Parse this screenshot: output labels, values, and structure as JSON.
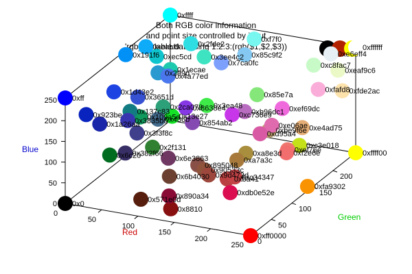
{
  "chart_data": {
    "type": "scatter",
    "title": [
      "Both RGB color information",
      "and point size controlled by input",
      "'rgb_variable.dat' using 1:2:3:(rgb($1,$2,$3))"
    ],
    "xlabel": "Red",
    "ylabel": "Green",
    "zlabel": "Blue",
    "xlim": [
      0,
      255
    ],
    "ylim": [
      0,
      255
    ],
    "zlim": [
      0,
      255
    ],
    "x_ticks": [
      0,
      50,
      100,
      150,
      200,
      250
    ],
    "y_ticks": [
      0,
      50,
      100,
      150,
      200
    ],
    "z_ticks": [
      0,
      50,
      100,
      150,
      200,
      250
    ],
    "label_colors": {
      "xlabel": "#cc0000",
      "ylabel": "#00cc00",
      "zlabel": "#0000cc"
    },
    "legend_swatches": [
      "#000000",
      "#b22200",
      "#ffff00"
    ],
    "points": [
      {
        "label": "0x0",
        "rgb": [
          0,
          0,
          0
        ]
      },
      {
        "label": "0xff",
        "rgb": [
          0,
          0,
          255
        ]
      },
      {
        "label": "0xff0000",
        "rgb": [
          255,
          0,
          0
        ]
      },
      {
        "label": "0xffff00",
        "rgb": [
          255,
          255,
          0
        ]
      },
      {
        "label": "0xffff",
        "rgb": [
          0,
          255,
          255
        ]
      },
      {
        "label": "0xffffff",
        "rgb": [
          255,
          255,
          255
        ]
      },
      {
        "label": "0xe6eff4",
        "rgb": [
          230,
          239,
          244
        ]
      },
      {
        "label": "0xeabf9",
        "rgb": [
          14,
          171,
          249
        ]
      },
      {
        "label": "0x191f6",
        "rgb": [
          1,
          145,
          246
        ]
      },
      {
        "label": "0x85c9f2",
        "rgb": [
          133,
          201,
          242
        ]
      },
      {
        "label": "0x1ecae",
        "rgb": [
          30,
          202,
          174
        ]
      },
      {
        "label": "0x3ee4c2",
        "rgb": [
          62,
          228,
          194
        ]
      },
      {
        "label": "0x4a77ed",
        "rgb": [
          74,
          119,
          237
        ]
      },
      {
        "label": "0xec5cd",
        "rgb": [
          14,
          197,
          205
        ]
      },
      {
        "label": "0x923be",
        "rgb": [
          9,
          35,
          190
        ]
      },
      {
        "label": "0xc8fac7",
        "rgb": [
          200,
          250,
          199
        ]
      },
      {
        "label": "0x1d43e2",
        "rgb": [
          29,
          67,
          226
        ]
      },
      {
        "label": "0x3651d",
        "rgb": [
          54,
          81,
          210
        ]
      },
      {
        "label": "0xc736e9",
        "rgb": [
          199,
          54,
          233
        ]
      },
      {
        "label": "0x299d",
        "rgb": [
          41,
          153,
          208
        ]
      },
      {
        "label": "0xfafd8",
        "rgb": [
          250,
          173,
          216
        ]
      },
      {
        "label": "0xeaf9c6",
        "rgb": [
          234,
          249,
          198
        ]
      },
      {
        "label": "0xfde2ac",
        "rgb": [
          253,
          226,
          172
        ]
      },
      {
        "label": "0x2ca079",
        "rgb": [
          44,
          160,
          121
        ]
      },
      {
        "label": "0xb96dc1",
        "rgb": [
          185,
          109,
          193
        ]
      },
      {
        "label": "0xef69dc",
        "rgb": [
          239,
          105,
          220
        ]
      },
      {
        "label": "0xf2e6e",
        "rgb": [
          242,
          110,
          110
        ]
      },
      {
        "label": "0x2fde2",
        "rgb": [
          47,
          222,
          226
        ]
      },
      {
        "label": "0x1a26aa",
        "rgb": [
          26,
          38,
          170
        ]
      },
      {
        "label": "0x137c83",
        "rgb": [
          19,
          124,
          131
        ]
      },
      {
        "label": "0x854ab2",
        "rgb": [
          133,
          74,
          178
        ]
      },
      {
        "label": "0xe06ae",
        "rgb": [
          224,
          106,
          174
        ]
      },
      {
        "label": "0xf7f0",
        "rgb": [
          120,
          247,
          240
        ]
      },
      {
        "label": "0x109a5d",
        "rgb": [
          16,
          154,
          93
        ]
      },
      {
        "label": "0x3835b0",
        "rgb": [
          56,
          53,
          176
        ]
      },
      {
        "label": "0x8638e4",
        "rgb": [
          134,
          56,
          228
        ]
      },
      {
        "label": "0x7ca0fc",
        "rgb": [
          124,
          160,
          252
        ]
      },
      {
        "label": "0x85e7a",
        "rgb": [
          133,
          231,
          122
        ]
      },
      {
        "label": "0xe4ad75",
        "rgb": [
          228,
          173,
          117
        ]
      },
      {
        "label": "0xbe9f6e",
        "rgb": [
          190,
          159,
          110
        ]
      },
      {
        "label": "0x3ea48",
        "rgb": [
          62,
          234,
          72
        ]
      },
      {
        "label": "0x13e27",
        "rgb": [
          19,
          226,
          39
        ]
      },
      {
        "label": "0x382f66",
        "rgb": [
          56,
          47,
          102
        ]
      },
      {
        "label": "0x6c20",
        "rgb": [
          0,
          108,
          32
        ]
      },
      {
        "label": "0x3f3f8c",
        "rgb": [
          63,
          63,
          140
        ]
      },
      {
        "label": "0x436b",
        "rgb": [
          67,
          107,
          140
        ]
      },
      {
        "label": "0xba41",
        "rgb": [
          186,
          65,
          65
        ]
      },
      {
        "label": "0xdb0e52e",
        "rgb": [
          219,
          14,
          82
        ]
      },
      {
        "label": "0xef76e",
        "rgb": [
          239,
          118,
          110
        ]
      },
      {
        "label": "0x2f131",
        "rgb": [
          47,
          129,
          49
        ]
      },
      {
        "label": "0x6e3863",
        "rgb": [
          110,
          56,
          99
        ]
      },
      {
        "label": "0x890a34",
        "rgb": [
          137,
          10,
          52
        ]
      },
      {
        "label": "0x90533c",
        "rgb": [
          144,
          83,
          60
        ]
      },
      {
        "label": "0x8810",
        "rgb": [
          136,
          16,
          16
        ]
      },
      {
        "label": "0xd95a4",
        "rgb": [
          217,
          90,
          164
        ]
      },
      {
        "label": "0x895048",
        "rgb": [
          137,
          80,
          72
        ]
      },
      {
        "label": "0x9d473d",
        "rgb": [
          157,
          71,
          61
        ]
      },
      {
        "label": "0xa8e3d",
        "rgb": [
          168,
          142,
          61
        ]
      },
      {
        "label": "0xc34347",
        "rgb": [
          195,
          67,
          71
        ]
      },
      {
        "label": "0xc3e018",
        "rgb": [
          195,
          224,
          24
        ]
      },
      {
        "label": "0x6b4030",
        "rgb": [
          107,
          64,
          48
        ]
      },
      {
        "label": "0xfa9302",
        "rgb": [
          250,
          147,
          2
        ]
      },
      {
        "label": "0x571e0d",
        "rgb": [
          87,
          30,
          13
        ]
      },
      {
        "label": "0xa7a3c",
        "rgb": [
          167,
          122,
          60
        ]
      }
    ]
  }
}
